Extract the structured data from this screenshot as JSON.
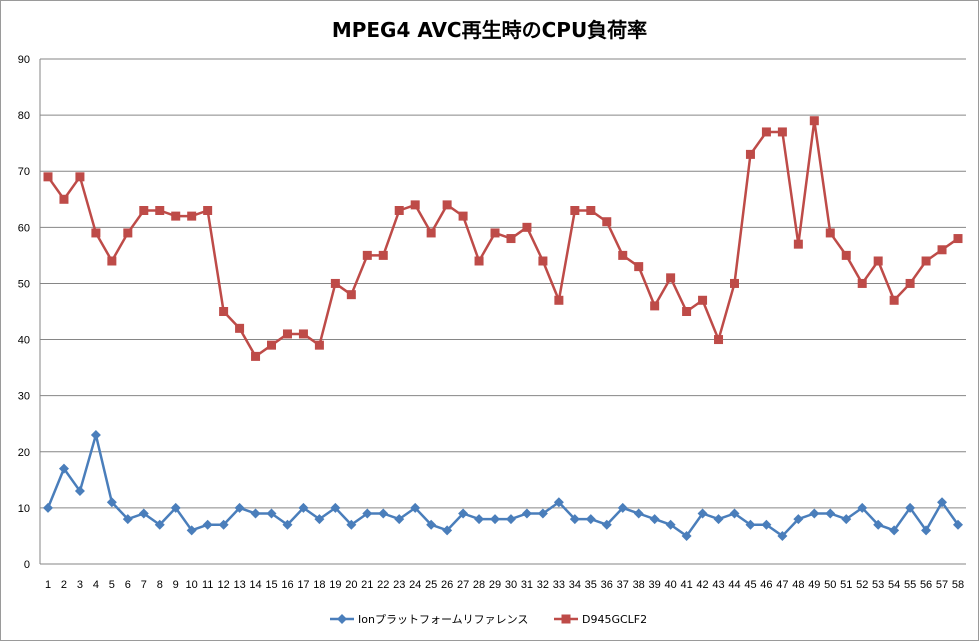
{
  "chart_data": {
    "type": "line",
    "title": "MPEG4 AVC再生時のCPU負荷率",
    "xlabel": "",
    "ylabel": "",
    "ylim": [
      0,
      90
    ],
    "yticks": [
      0,
      10,
      20,
      30,
      40,
      50,
      60,
      70,
      80,
      90
    ],
    "categories": [
      "1",
      "2",
      "3",
      "4",
      "5",
      "6",
      "7",
      "8",
      "9",
      "10",
      "11",
      "12",
      "13",
      "14",
      "15",
      "16",
      "17",
      "18",
      "19",
      "20",
      "21",
      "22",
      "23",
      "24",
      "25",
      "26",
      "27",
      "28",
      "29",
      "30",
      "31",
      "32",
      "33",
      "34",
      "35",
      "36",
      "37",
      "38",
      "39",
      "40",
      "41",
      "42",
      "43",
      "44",
      "45",
      "46",
      "47",
      "48",
      "49",
      "50",
      "51",
      "52",
      "53",
      "54",
      "55",
      "56",
      "57",
      "58"
    ],
    "grid": true,
    "legend": "bottom",
    "series": [
      {
        "name": "Ionプラットフォームリファレンス",
        "color": "#4a7ebb",
        "marker": "diamond",
        "values": [
          10,
          17,
          13,
          23,
          11,
          8,
          9,
          7,
          10,
          6,
          7,
          7,
          10,
          9,
          9,
          7,
          10,
          8,
          10,
          7,
          9,
          9,
          8,
          10,
          7,
          6,
          9,
          8,
          8,
          8,
          9,
          9,
          11,
          8,
          8,
          7,
          10,
          9,
          8,
          7,
          5,
          9,
          8,
          9,
          7,
          7,
          5,
          8,
          9,
          9,
          8,
          10,
          7,
          6,
          10,
          6,
          11,
          7
        ]
      },
      {
        "name": "D945GCLF2",
        "color": "#be4b48",
        "marker": "square",
        "values": [
          69,
          65,
          69,
          59,
          54,
          59,
          63,
          63,
          62,
          62,
          63,
          45,
          42,
          37,
          39,
          41,
          41,
          39,
          50,
          48,
          55,
          55,
          63,
          64,
          59,
          64,
          62,
          54,
          59,
          58,
          60,
          54,
          47,
          63,
          63,
          61,
          55,
          53,
          46,
          51,
          45,
          47,
          40,
          50,
          73,
          77,
          77,
          57,
          79,
          59,
          55,
          50,
          54,
          47,
          50,
          54,
          56,
          58
        ]
      }
    ]
  }
}
